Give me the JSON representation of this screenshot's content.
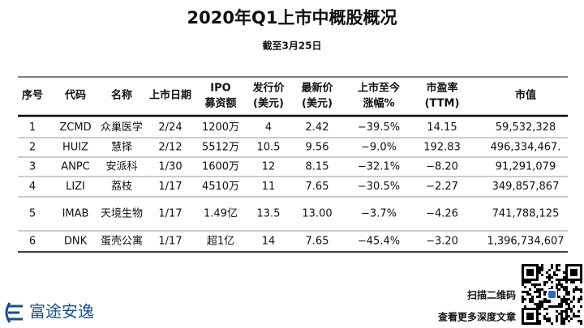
{
  "header": {
    "title": "2020年Q1上市中概股概况",
    "subtitle": "截至3月25日"
  },
  "table": {
    "columns": [
      [
        "序号"
      ],
      [
        "代码"
      ],
      [
        "名称"
      ],
      [
        "上市日期"
      ],
      [
        "IPO",
        "募资额"
      ],
      [
        "发行价",
        "(美元)"
      ],
      [
        "最新价",
        "(美元)"
      ],
      [
        "上市至今",
        "涨幅%"
      ],
      [
        "市盈率",
        "(TTM)"
      ],
      [
        "市值"
      ]
    ],
    "rows": [
      [
        "1",
        "ZCMD",
        "众巢医学",
        "2/24",
        "1200万",
        "4",
        "2.42",
        "−39.5%",
        "14.15",
        "59,532,328"
      ],
      [
        "2",
        "HUIZ",
        "慧择",
        "2/12",
        "5512万",
        "10.5",
        "9.56",
        "−9.0%",
        "192.83",
        "496,334,467."
      ],
      [
        "3",
        "ANPC",
        "安派科",
        "1/30",
        "1600万",
        "12",
        "8.15",
        "−32.1%",
        "−8.20",
        "91,291,079"
      ],
      [
        "4",
        "LIZI",
        "荔枝",
        "1/17",
        "4510万",
        "11",
        "7.65",
        "−30.5%",
        "−2.27",
        "349,857,867"
      ],
      [
        "5",
        "IMAB",
        "天境生物",
        "1/17",
        "1.49亿",
        "13.5",
        "13.00",
        "−3.7%",
        "−4.26",
        "741,788,125"
      ],
      [
        "6",
        "DNK",
        "蛋壳公寓",
        "1/17",
        "超1亿",
        "14",
        "7.65",
        "−45.4%",
        "−3.20",
        "1,396,734,607"
      ]
    ]
  },
  "footer": {
    "logo": "富途安逸",
    "qr_line1": "扫描二维码",
    "qr_line2": "查看更多深度文章"
  }
}
